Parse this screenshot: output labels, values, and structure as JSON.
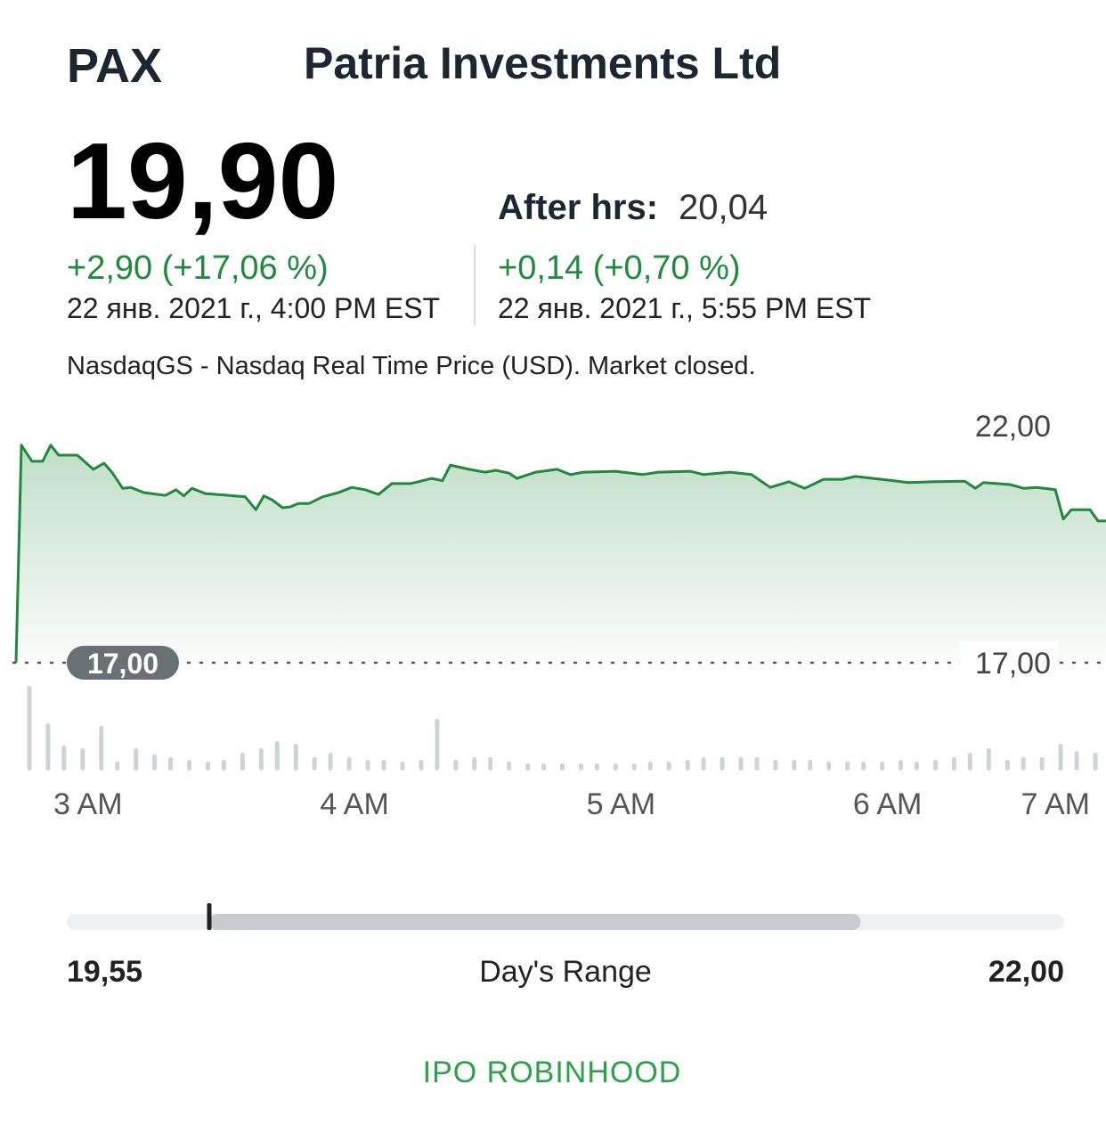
{
  "header": {
    "ticker": "PAX",
    "company": "Patria Investments Ltd"
  },
  "quote": {
    "price": "19,90",
    "change": "+2,90 (+17,06 %)",
    "time": "22 янв. 2021 г., 4:00 PM EST",
    "after_hours_label": "After hrs:",
    "after_hours_price": "20,04",
    "after_hours_change": "+0,14 (+0,70 %)",
    "after_hours_time": "22 янв. 2021 г., 5:55 PM EST",
    "note": "NasdaqGS - Nasdaq Real Time Price (USD). Market closed."
  },
  "chart_data": {
    "type": "line",
    "x": [
      2.73,
      2.75,
      2.79,
      2.83,
      2.86,
      2.89,
      2.96,
      3.02,
      3.06,
      3.09,
      3.13,
      3.16,
      3.21,
      3.29,
      3.33,
      3.36,
      3.39,
      3.44,
      3.53,
      3.59,
      3.63,
      3.66,
      3.69,
      3.73,
      3.76,
      3.79,
      3.83,
      3.88,
      3.94,
      3.99,
      4.04,
      4.09,
      4.14,
      4.21,
      4.24,
      4.29,
      4.33,
      4.36,
      4.43,
      4.49,
      4.53,
      4.58,
      4.61,
      4.68,
      4.76,
      4.81,
      4.86,
      4.98,
      5.08,
      5.14,
      5.26,
      5.31,
      5.41,
      5.49,
      5.56,
      5.63,
      5.69,
      5.76,
      5.83,
      5.88,
      6.01,
      6.08,
      6.18,
      6.29,
      6.33,
      6.36,
      6.46,
      6.51,
      6.56,
      6.63,
      6.66,
      6.69,
      6.76,
      6.79,
      6.82
    ],
    "series": [
      {
        "color": "#1f8a3c",
        "values": [
          17.0,
          21.59,
          21.25,
          21.25,
          21.59,
          21.38,
          21.38,
          21.08,
          21.21,
          21.02,
          20.68,
          20.7,
          20.59,
          20.53,
          20.65,
          20.52,
          20.68,
          20.57,
          20.53,
          20.5,
          20.23,
          20.52,
          20.44,
          20.27,
          20.29,
          20.36,
          20.36,
          20.5,
          20.59,
          20.7,
          20.65,
          20.55,
          20.78,
          20.78,
          20.82,
          20.89,
          20.84,
          21.17,
          21.08,
          21.02,
          21.06,
          21.0,
          20.89,
          21.02,
          21.08,
          20.97,
          21.02,
          21.04,
          20.97,
          21.02,
          21.04,
          20.97,
          21.02,
          20.97,
          20.7,
          20.82,
          20.68,
          20.87,
          20.87,
          20.93,
          20.85,
          20.8,
          20.82,
          20.83,
          20.68,
          20.8,
          20.76,
          20.68,
          20.7,
          20.65,
          20.03,
          20.23,
          20.23,
          19.99,
          19.99
        ]
      }
    ],
    "xlim": [
      2.72,
      6.82
    ],
    "xticks": [
      {
        "value": 3,
        "label": "3 AM"
      },
      {
        "value": 4,
        "label": "4 AM"
      },
      {
        "value": 5,
        "label": "5 AM"
      },
      {
        "value": 6,
        "label": "6 AM"
      },
      {
        "value": 7,
        "label": "7 AM"
      }
    ],
    "ylim": [
      17,
      22
    ],
    "yticks": [
      {
        "value": 17,
        "label": "17,00"
      },
      {
        "value": 22,
        "label": "22,00"
      }
    ],
    "reference": {
      "value": 17,
      "label": "17,00"
    },
    "volume": {
      "color": "#d0d3d6",
      "x": [
        2.78,
        2.85,
        2.91,
        2.98,
        3.05,
        3.11,
        3.18,
        3.25,
        3.31,
        3.38,
        3.45,
        3.51,
        3.58,
        3.65,
        3.71,
        3.78,
        3.85,
        3.91,
        3.98,
        4.05,
        4.11,
        4.18,
        4.25,
        4.31,
        4.38,
        4.45,
        4.51,
        4.58,
        4.65,
        4.71,
        4.78,
        4.85,
        4.91,
        4.98,
        5.05,
        5.11,
        5.18,
        5.25,
        5.31,
        5.38,
        5.45,
        5.51,
        5.58,
        5.65,
        5.71,
        5.78,
        5.85,
        5.91,
        5.98,
        6.05,
        6.11,
        6.18,
        6.25,
        6.31,
        6.38,
        6.45,
        6.51,
        6.58,
        6.65,
        6.71,
        6.78
      ],
      "values": [
        95,
        53,
        28,
        25,
        50,
        10,
        25,
        18,
        15,
        12,
        10,
        12,
        20,
        25,
        33,
        30,
        15,
        20,
        15,
        12,
        12,
        10,
        12,
        58,
        12,
        15,
        15,
        10,
        8,
        8,
        8,
        8,
        8,
        8,
        8,
        10,
        10,
        12,
        15,
        15,
        15,
        15,
        12,
        12,
        12,
        10,
        10,
        10,
        10,
        12,
        10,
        12,
        15,
        20,
        25,
        12,
        15,
        15,
        30,
        22,
        20
      ]
    }
  },
  "day_range": {
    "low": 19.55,
    "low_label": "19,55",
    "high": 22,
    "high_label": "22,00",
    "current": 19.9,
    "fill_end": 21.5,
    "label": "Day's Range"
  },
  "footer": "IPO ROBINHOOD"
}
